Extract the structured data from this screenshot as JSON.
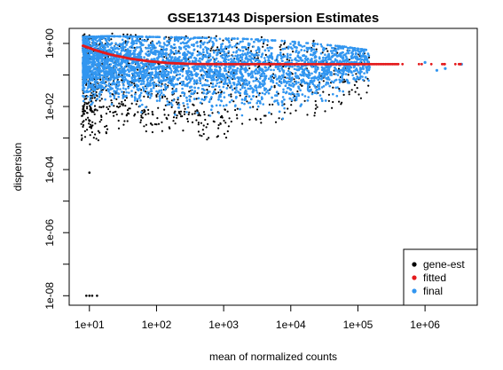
{
  "chart_data": {
    "type": "scatter",
    "title": "GSE137143 Dispersion Estimates",
    "xlabel": "mean of normalized counts",
    "ylabel": "dispersion",
    "x_scale": "log10",
    "y_scale": "log10",
    "xlim": [
      5,
      6000000
    ],
    "ylim": [
      5e-09,
      3
    ],
    "x_ticks": [
      "1e+01",
      "1e+02",
      "1e+03",
      "1e+04",
      "1e+05",
      "1e+06"
    ],
    "y_ticks": [
      "1e-08",
      "1e-06",
      "1e-04",
      "1e-02",
      "1e+00"
    ],
    "legend": {
      "position": "bottom-right",
      "entries": [
        {
          "label": "gene-est",
          "color": "#000000"
        },
        {
          "label": "fitted",
          "color": "#e41a1c"
        },
        {
          "label": "final",
          "color": "#3296f0"
        }
      ]
    },
    "series": [
      {
        "name": "fitted",
        "color": "#e41a1c",
        "points": [
          [
            8,
            0.85
          ],
          [
            12,
            0.62
          ],
          [
            20,
            0.45
          ],
          [
            40,
            0.33
          ],
          [
            80,
            0.27
          ],
          [
            150,
            0.24
          ],
          [
            300,
            0.225
          ],
          [
            1000,
            0.22
          ],
          [
            3000,
            0.22
          ],
          [
            10000,
            0.22
          ],
          [
            30000,
            0.22
          ],
          [
            100000,
            0.22
          ],
          [
            400000,
            0.22
          ],
          [
            1500000,
            0.22
          ],
          [
            3500000,
            0.22
          ]
        ]
      },
      {
        "name": "final",
        "color": "#3296f0",
        "band": [
          [
            8,
            0.008,
            1.6
          ],
          [
            20,
            0.008,
            1.7
          ],
          [
            100,
            0.006,
            1.6
          ],
          [
            500,
            0.004,
            1.5
          ],
          [
            2000,
            0.003,
            1.4
          ],
          [
            8000,
            0.003,
            1.2
          ],
          [
            20000,
            0.006,
            1.0
          ],
          [
            60000,
            0.015,
            0.8
          ],
          [
            150000,
            0.03,
            0.6
          ]
        ],
        "outliers": [
          [
            1500000,
            0.14
          ],
          [
            2000000,
            0.16
          ],
          [
            3500000,
            0.22
          ],
          [
            1000000,
            0.25
          ]
        ]
      },
      {
        "name": "gene-est",
        "color": "#000000",
        "low_tail": [
          [
            9,
            0.004
          ],
          [
            10,
            0.002
          ],
          [
            11,
            0.0015
          ],
          [
            15,
            0.003
          ],
          [
            30,
            0.005
          ],
          [
            60,
            0.004
          ],
          [
            100,
            0.003
          ],
          [
            200,
            0.0035
          ],
          [
            500,
            0.002
          ],
          [
            1000,
            0.002
          ]
        ],
        "zero_points": [
          [
            9,
            1e-08
          ],
          [
            10,
            1e-08
          ],
          [
            11,
            1e-08
          ],
          [
            13,
            1e-08
          ]
        ],
        "isolated": [
          [
            10,
            8e-05
          ]
        ]
      }
    ]
  }
}
